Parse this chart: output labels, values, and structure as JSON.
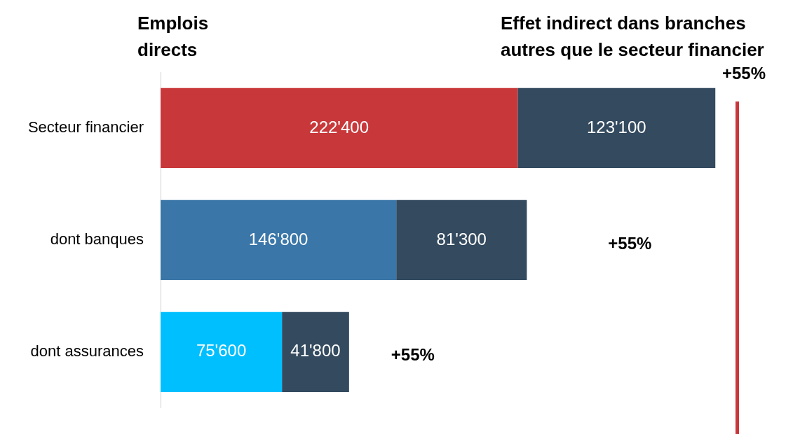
{
  "chart_data": {
    "type": "bar",
    "orientation": "horizontal",
    "stacked": true,
    "categories": [
      "Secteur financier",
      "dont banques",
      "dont assurances"
    ],
    "series": [
      {
        "name": "Emplois directs",
        "colors": [
          "#c8383a",
          "#3a76a8",
          "#00bfff"
        ],
        "values": [
          222400,
          146800,
          75600
        ],
        "value_labels": [
          "222'400",
          "146'800",
          "75'600"
        ]
      },
      {
        "name": "Effet indirect dans branches autres que le secteur financier",
        "color": "#334a5f",
        "values": [
          123100,
          81300,
          41800
        ],
        "value_labels": [
          "123'100",
          "81'300",
          "41'800"
        ]
      }
    ],
    "annotations": [
      "+55%",
      "+55%",
      "+55%"
    ],
    "tick_labels": "y",
    "grid": false,
    "legend": false
  }
}
